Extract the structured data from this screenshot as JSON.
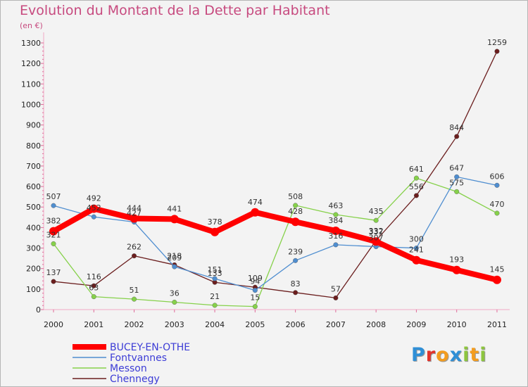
{
  "header": {
    "title": "Evolution du Montant de la Dette par Habitant",
    "subtitle": "(en €)"
  },
  "logo": {
    "text": "Proxiti",
    "letter_colors": [
      "#2f8fd6",
      "#e2332c",
      "#f39c1e",
      "#2f8fd6",
      "#8dc53e",
      "#f39c1e",
      "#8dc53e"
    ]
  },
  "chart_data": {
    "type": "line",
    "x": [
      "2000",
      "2001",
      "2002",
      "2003",
      "2004",
      "2005",
      "2006",
      "2007",
      "2008",
      "2009",
      "2010",
      "2011"
    ],
    "ylim": [
      0,
      1300
    ],
    "yticks": [
      0,
      100,
      200,
      300,
      400,
      500,
      600,
      700,
      800,
      900,
      1000,
      1100,
      1200,
      1300
    ],
    "grid": false,
    "legend": "bottom-left",
    "series": [
      {
        "name": "BUCEY-EN-OTHE",
        "color": "#ff0000",
        "values": [
          382,
          492,
          444,
          441,
          378,
          474,
          428,
          384,
          332,
          241,
          193,
          145
        ]
      },
      {
        "name": "Fontvannes",
        "color": "#4f8ed0",
        "values": [
          507,
          452,
          427,
          209,
          151,
          94,
          239,
          316,
          307,
          300,
          647,
          606
        ]
      },
      {
        "name": "Messon",
        "color": "#86d14a",
        "values": [
          321,
          63,
          51,
          36,
          21,
          15,
          508,
          463,
          435,
          641,
          575,
          470
        ]
      },
      {
        "name": "Chennegy",
        "color": "#6b1e1e",
        "values": [
          137,
          116,
          262,
          218,
          133,
          109,
          83,
          57,
          337,
          556,
          844,
          1259
        ]
      }
    ]
  }
}
